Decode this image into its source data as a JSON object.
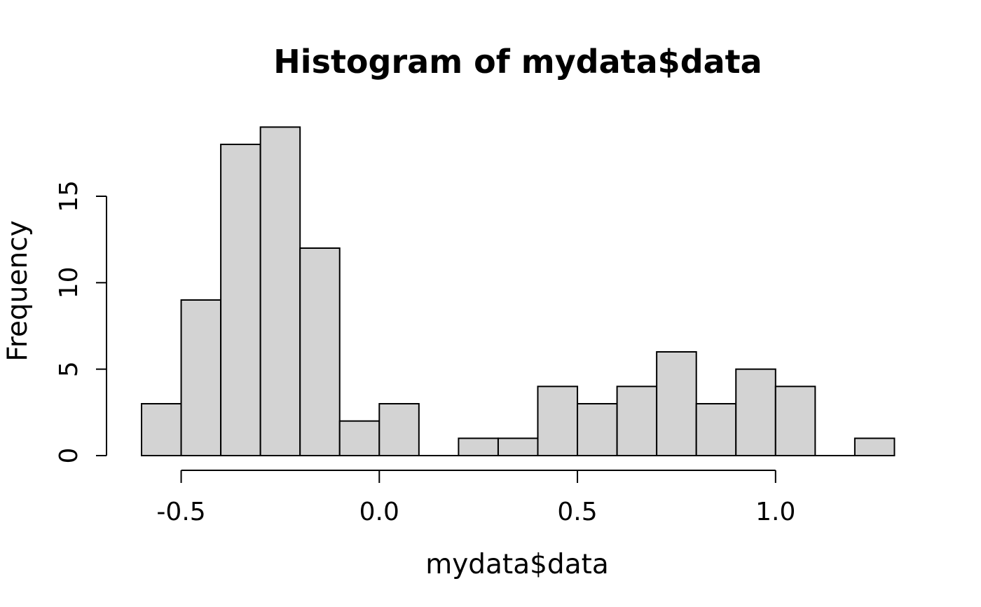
{
  "page": {
    "background": "#ffffff"
  },
  "chart_data": {
    "type": "bar",
    "subtype": "histogram",
    "title": "Histogram of mydata$data",
    "xlabel": "mydata$data",
    "ylabel": "Frequency",
    "breaks": [
      -0.6,
      -0.5,
      -0.4,
      -0.3,
      -0.2,
      -0.1,
      0.0,
      0.1,
      0.2,
      0.3,
      0.4,
      0.5,
      0.6,
      0.7,
      0.8,
      0.9,
      1.0,
      1.1,
      1.2,
      1.3
    ],
    "counts": [
      3,
      9,
      18,
      19,
      12,
      2,
      3,
      0,
      1,
      1,
      4,
      3,
      4,
      6,
      3,
      5,
      4,
      0,
      1
    ],
    "x_ticks": [
      {
        "value": -0.5,
        "label": "-0.5"
      },
      {
        "value": 0.0,
        "label": "0.0"
      },
      {
        "value": 0.5,
        "label": "0.5"
      },
      {
        "value": 1.0,
        "label": "1.0"
      }
    ],
    "y_ticks": [
      {
        "value": 0,
        "label": "0"
      },
      {
        "value": 5,
        "label": "5"
      },
      {
        "value": 10,
        "label": "10"
      },
      {
        "value": 15,
        "label": "15"
      }
    ],
    "xlim": [
      -0.6,
      1.3
    ],
    "ylim": [
      0,
      19
    ],
    "grid": false,
    "legend": "none",
    "bar_fill": "#d3d3d3",
    "bar_stroke": "#000000",
    "axis_color": "#000000",
    "text_color": "#000000"
  }
}
